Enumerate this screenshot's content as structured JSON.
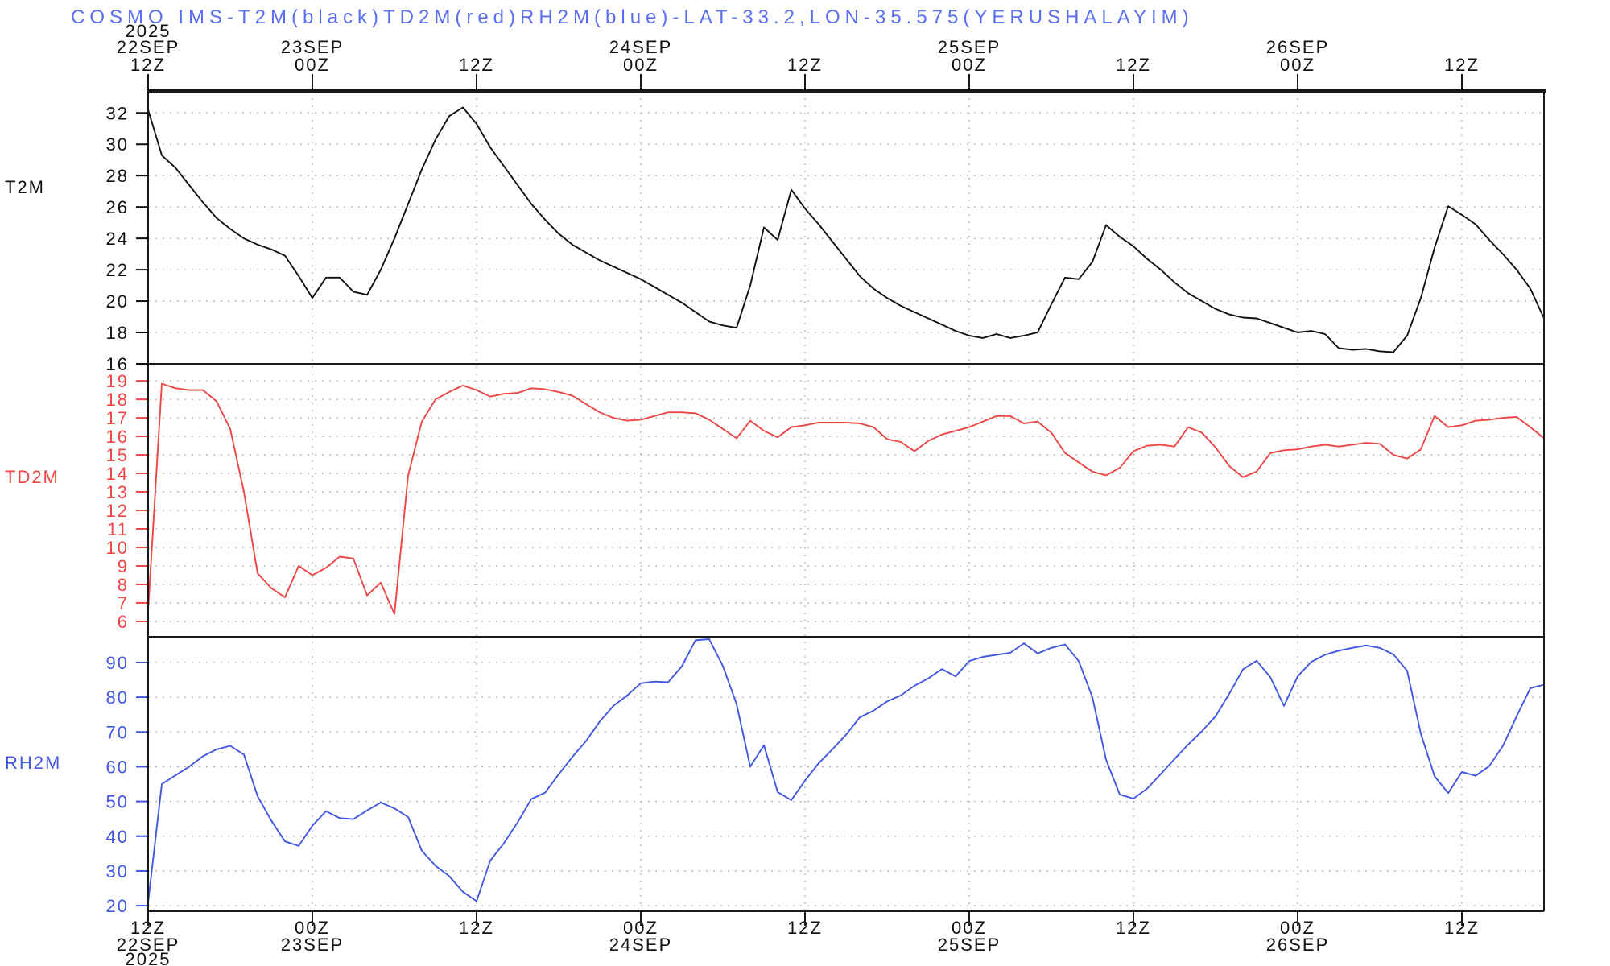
{
  "title": "COSMO IMS-T2M(black)TD2M(red)RH2M(blue)-LAT-33.2,LON-35.575(YERUSHALAYIM)",
  "colors": {
    "title": "#5c6ff0",
    "t2m": "#111111",
    "td2m": "#ee4545",
    "rh2m": "#4157e0",
    "grid": "#b0b0b0",
    "axis": "#1a1a1a"
  },
  "location": {
    "lat": "33.2",
    "lon": "35.575",
    "name": "YERUSHALAYIM"
  },
  "model": "COSMO IMS",
  "chart_data": {
    "type": "line",
    "title": "COSMO IMS-T2M(black)TD2M(red)RH2M(blue)-LAT-33.2,LON-35.575(YERUSHALAYIM)",
    "x": {
      "start": "2025-09-22 12Z",
      "end": "2025-09-26 18Z",
      "step_hours": 1,
      "total_hours": 102
    },
    "time_ticks": [
      {
        "t": 0,
        "hour": "12Z",
        "date": "22SEP",
        "year": "2025"
      },
      {
        "t": 12,
        "hour": "00Z",
        "date": "23SEP"
      },
      {
        "t": 24,
        "hour": "12Z"
      },
      {
        "t": 36,
        "hour": "00Z",
        "date": "24SEP"
      },
      {
        "t": 48,
        "hour": "12Z"
      },
      {
        "t": 60,
        "hour": "00Z",
        "date": "25SEP"
      },
      {
        "t": 72,
        "hour": "12Z"
      },
      {
        "t": 84,
        "hour": "00Z",
        "date": "26SEP"
      },
      {
        "t": 96,
        "hour": "12Z"
      }
    ],
    "panels": [
      {
        "name": "T2M",
        "color_name": "black",
        "color": "#111111",
        "ylim": [
          16,
          33.4
        ],
        "yticks": [
          32,
          30,
          28,
          26,
          24,
          22,
          20,
          18,
          16
        ],
        "values": [
          32.2,
          29.3,
          28.5,
          27.4,
          26.3,
          25.3,
          24.6,
          24.0,
          23.6,
          23.3,
          22.9,
          21.6,
          20.2,
          21.5,
          21.5,
          20.6,
          20.4,
          22.0,
          24.0,
          26.2,
          28.4,
          30.3,
          31.8,
          32.35,
          31.3,
          29.8,
          28.6,
          27.4,
          26.2,
          25.2,
          24.3,
          23.6,
          23.1,
          22.6,
          22.2,
          21.8,
          21.4,
          20.9,
          20.4,
          19.9,
          19.3,
          18.7,
          18.45,
          18.3,
          21.0,
          24.7,
          23.9,
          27.1,
          25.9,
          24.9,
          23.8,
          22.7,
          21.6,
          20.8,
          20.2,
          19.7,
          19.3,
          18.9,
          18.5,
          18.1,
          17.8,
          17.65,
          17.9,
          17.65,
          17.8,
          18.0,
          19.8,
          21.5,
          21.4,
          22.5,
          24.85,
          24.1,
          23.5,
          22.7,
          22.0,
          21.2,
          20.5,
          20.0,
          19.5,
          19.15,
          18.95,
          18.9,
          18.6,
          18.3,
          18.0,
          18.1,
          17.9,
          17.0,
          16.9,
          16.95,
          16.8,
          16.75,
          17.8,
          20.2,
          23.4,
          26.05,
          25.5,
          24.9,
          23.9,
          23.0,
          22.0,
          20.8,
          18.9
        ]
      },
      {
        "name": "TD2M",
        "color_name": "red",
        "color": "#ee4545",
        "ylim": [
          5.17,
          19.92
        ],
        "yticks": [
          19,
          18,
          17,
          16,
          15,
          14,
          13,
          12,
          11,
          10,
          9,
          8,
          7,
          6
        ],
        "values": [
          6.6,
          18.85,
          18.6,
          18.5,
          18.5,
          17.9,
          16.4,
          13.0,
          8.6,
          7.8,
          7.3,
          9.0,
          8.5,
          8.9,
          9.5,
          9.4,
          7.4,
          8.1,
          6.4,
          13.9,
          16.8,
          18.0,
          18.4,
          18.75,
          18.5,
          18.15,
          18.3,
          18.35,
          18.6,
          18.55,
          18.4,
          18.2,
          17.75,
          17.3,
          17.0,
          16.85,
          16.9,
          17.1,
          17.3,
          17.3,
          17.25,
          16.9,
          16.4,
          15.9,
          16.85,
          16.3,
          15.95,
          16.5,
          16.6,
          16.75,
          16.75,
          16.75,
          16.7,
          16.5,
          15.85,
          15.7,
          15.2,
          15.75,
          16.1,
          16.3,
          16.5,
          16.8,
          17.1,
          17.1,
          16.7,
          16.8,
          16.2,
          15.1,
          14.6,
          14.1,
          13.9,
          14.3,
          15.2,
          15.5,
          15.55,
          15.45,
          16.5,
          16.2,
          15.4,
          14.4,
          13.8,
          14.1,
          15.1,
          15.25,
          15.3,
          15.45,
          15.55,
          15.45,
          15.55,
          15.65,
          15.6,
          15.0,
          14.8,
          15.3,
          17.1,
          16.5,
          16.6,
          16.85,
          16.9,
          17.0,
          17.05,
          16.5,
          15.9
        ]
      },
      {
        "name": "RH2M",
        "color_name": "blue",
        "color": "#4157e0",
        "ylim": [
          18.4,
          97.4
        ],
        "yticks": [
          90,
          80,
          70,
          60,
          50,
          40,
          30,
          20
        ],
        "values": [
          21,
          55,
          57.5,
          60,
          63,
          65,
          66,
          63.5,
          51.5,
          44.5,
          38.5,
          37.2,
          43,
          47.2,
          45.2,
          44.9,
          47.4,
          49.7,
          48,
          45.5,
          35.8,
          31.5,
          28.5,
          24,
          21.3,
          33,
          38,
          44,
          50.7,
          52.5,
          57.8,
          62.8,
          67.4,
          73,
          77.5,
          80.5,
          84,
          84.5,
          84.3,
          88.9,
          96.4,
          96.7,
          89,
          78,
          60,
          66.2,
          52.7,
          50.4,
          56,
          61,
          65,
          69.2,
          74.2,
          76.1,
          78.8,
          80.5,
          83.3,
          85.4,
          88.1,
          86,
          90.4,
          91.6,
          92.2,
          92.8,
          95.5,
          92.6,
          94.2,
          95.2,
          90.4,
          80,
          62,
          52,
          50.8,
          53.7,
          57.9,
          62.2,
          66.4,
          70.2,
          74.5,
          81,
          88,
          90.5,
          85.8,
          77.5,
          86,
          90.2,
          92.2,
          93.4,
          94.2,
          94.9,
          94.2,
          92.3,
          87.6,
          69.5,
          57.3,
          52.4,
          58.5,
          57.4,
          60.2,
          66,
          74.5,
          82.6,
          83.6
        ]
      }
    ],
    "grid": true,
    "legend_position": "in-title"
  }
}
